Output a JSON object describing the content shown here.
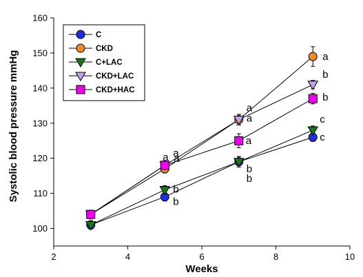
{
  "chart_data": {
    "type": "line",
    "title": "",
    "xlabel": "Weeks",
    "ylabel": "Systolic blood pressure mmHg",
    "xlim": [
      2,
      10
    ],
    "ylim": [
      95,
      160
    ],
    "xticks": [
      "2",
      "4",
      "6",
      "8",
      "10"
    ],
    "yticks": [
      "100",
      "110",
      "120",
      "130",
      "140",
      "150",
      "160"
    ],
    "x": [
      3,
      5,
      7,
      9
    ],
    "legend": "top-left",
    "grid": false,
    "series": [
      {
        "name": "C",
        "marker": "circle",
        "color": "#1f2ee0",
        "values": [
          101,
          109,
          119,
          126
        ],
        "error": [
          1.2,
          1.2,
          1.5,
          1.2
        ],
        "letters": [
          "",
          "b",
          "b",
          "c"
        ]
      },
      {
        "name": "CKD",
        "marker": "circle",
        "color": "#f08a24",
        "values": [
          104,
          117,
          131,
          149
        ],
        "error": [
          1.2,
          1.2,
          1.5,
          2.8
        ],
        "letters": [
          "",
          "a",
          "a",
          "a"
        ]
      },
      {
        "name": "C+LAC",
        "marker": "triangle-down",
        "color": "#157a15",
        "values": [
          101,
          111,
          119,
          128
        ],
        "error": [
          1.2,
          1.2,
          1.5,
          1.2
        ],
        "letters": [
          "",
          "b",
          "b",
          "c"
        ]
      },
      {
        "name": "CKD+LAC",
        "marker": "triangle-down",
        "color": "#c8a0f0",
        "values": [
          104,
          118,
          131,
          141
        ],
        "error": [
          1.2,
          1.2,
          1.5,
          1.2
        ],
        "letters": [
          "",
          "a",
          "a",
          "b"
        ]
      },
      {
        "name": "CKD+HAC",
        "marker": "square",
        "color": "#f000f0",
        "values": [
          104,
          118,
          125,
          137
        ],
        "error": [
          1.2,
          1.2,
          2.0,
          1.5
        ],
        "letters": [
          "",
          "a",
          "a",
          "b"
        ]
      }
    ]
  }
}
